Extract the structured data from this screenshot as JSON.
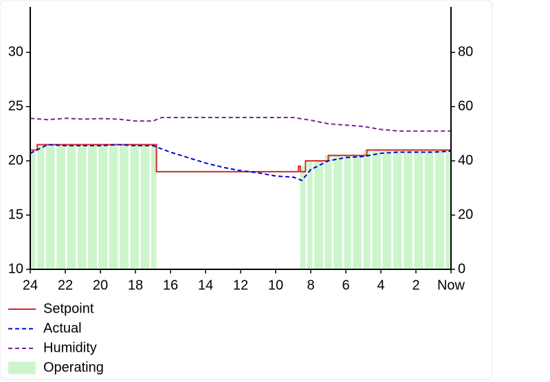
{
  "chart_data": {
    "type": "line",
    "xlim": [
      24,
      0
    ],
    "xticks": [
      24,
      22,
      20,
      18,
      16,
      14,
      12,
      10,
      8,
      6,
      4,
      2,
      {
        "value": 0,
        "label": "Now"
      }
    ],
    "ylim": [
      10,
      34.2
    ],
    "yticks": [
      10,
      15,
      20,
      25,
      30
    ],
    "y2lim": [
      0,
      96.8
    ],
    "y2ticks": [
      0,
      20,
      40,
      60,
      80
    ],
    "legend": "bottom-left",
    "series": [
      {
        "name": "Setpoint",
        "color": "#d62728",
        "linestyle": "solid",
        "x": [
          24,
          23.6,
          23.6,
          16.8,
          16.8,
          8.7,
          8.7,
          8.6,
          8.6,
          8.3,
          8.3,
          7,
          7,
          4.8,
          4.8,
          0
        ],
        "values": [
          21,
          21,
          21.5,
          21.5,
          19,
          19,
          19.5,
          19.5,
          19,
          19,
          20,
          20,
          20.5,
          20.5,
          21,
          21
        ]
      },
      {
        "name": "Actual",
        "color": "#0000dd",
        "linestyle": "dashed",
        "x": [
          24,
          23,
          22,
          21,
          20,
          19,
          18,
          17,
          16,
          15,
          14,
          13,
          12,
          11,
          10,
          9,
          8.5,
          8,
          7,
          6,
          5,
          4,
          3,
          2,
          1,
          0
        ],
        "values": [
          20.7,
          21.5,
          21.4,
          21.4,
          21.4,
          21.5,
          21.4,
          21.4,
          20.8,
          20.3,
          19.8,
          19.4,
          19.1,
          18.9,
          18.6,
          18.5,
          18.2,
          19.2,
          20,
          20.3,
          20.4,
          20.7,
          20.8,
          20.8,
          20.8,
          20.9
        ]
      },
      {
        "name": "Humidity",
        "color": "#7b1fa2",
        "linestyle": "dashed",
        "axis": "y2",
        "x": [
          24,
          23,
          22,
          21,
          20,
          19,
          18,
          17,
          16.5,
          12,
          9,
          8,
          7,
          6,
          5,
          4,
          3,
          2,
          1,
          0
        ],
        "values": [
          55.7,
          55.2,
          55.7,
          55.4,
          55.6,
          55.4,
          54.7,
          54.7,
          56,
          56,
          56,
          55,
          53.7,
          53.2,
          52.7,
          51.6,
          51,
          51,
          51,
          51
        ]
      },
      {
        "name": "Operating",
        "color": "#ccf5cc",
        "style": "bars",
        "x_start": [
          24,
          23.6,
          23.1,
          22.5,
          21.9,
          21.3,
          20.7,
          20.1,
          19.5,
          18.9,
          18.3,
          17.7,
          17.1,
          8.6,
          8.2,
          7.8,
          7.2,
          6.7,
          6.1,
          5.6,
          5.0,
          4.5,
          3.9,
          3.3,
          2.7,
          2.1,
          1.5,
          0.9,
          0.3
        ],
        "x_end": [
          23.7,
          23.2,
          22.6,
          22.0,
          21.4,
          20.8,
          20.2,
          19.6,
          19.0,
          18.4,
          17.8,
          17.2,
          16.8,
          8.3,
          7.9,
          7.3,
          6.8,
          6.2,
          5.7,
          5.1,
          4.6,
          4.0,
          3.4,
          2.8,
          2.2,
          1.6,
          1.0,
          0.4,
          0
        ],
        "values": [
          21,
          21.5,
          21.5,
          21.5,
          21.5,
          21.5,
          21.5,
          21.5,
          21.5,
          21.5,
          21.5,
          21.5,
          21.5,
          19.5,
          20,
          20,
          20.5,
          20.5,
          20.5,
          20.5,
          21,
          21,
          21,
          21,
          21,
          21,
          21,
          21,
          21
        ]
      }
    ]
  }
}
